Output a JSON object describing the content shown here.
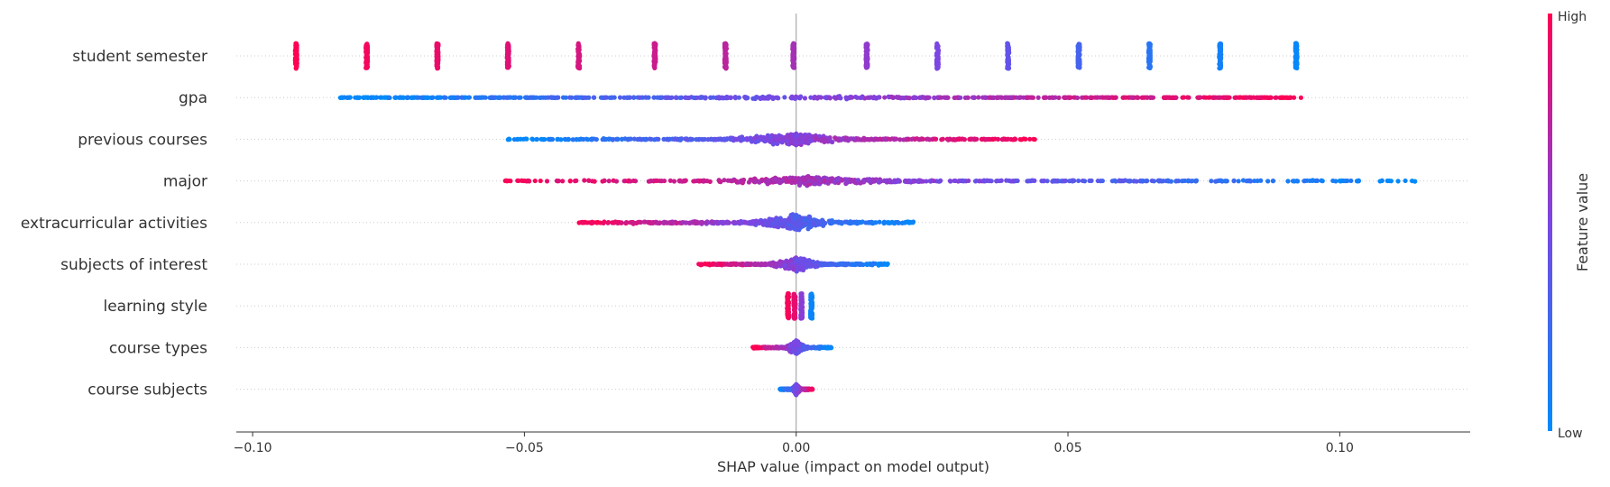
{
  "chart_data": {
    "type": "scatter",
    "subtype": "shap-beeswarm",
    "title": "",
    "xlabel": "SHAP value (impact on model output)",
    "ylabel": "",
    "xlim": [
      -0.103,
      0.124
    ],
    "x_ticks": [
      -0.1,
      -0.05,
      0.0,
      0.05,
      0.1
    ],
    "x_tick_labels": [
      "−0.10",
      "−0.05",
      "0.00",
      "0.05",
      "0.10"
    ],
    "grid": false,
    "features": [
      {
        "name": "student semester",
        "kind": "discrete",
        "groups": [
          {
            "x": -0.092,
            "v": 1.0
          },
          {
            "x": -0.079,
            "v": 0.96
          },
          {
            "x": -0.066,
            "v": 0.92
          },
          {
            "x": -0.053,
            "v": 0.88
          },
          {
            "x": -0.04,
            "v": 0.84
          },
          {
            "x": -0.026,
            "v": 0.8
          },
          {
            "x": -0.013,
            "v": 0.74
          },
          {
            "x": -0.0005,
            "v": 0.66
          },
          {
            "x": 0.013,
            "v": 0.58
          },
          {
            "x": 0.026,
            "v": 0.5
          },
          {
            "x": 0.039,
            "v": 0.4
          },
          {
            "x": 0.052,
            "v": 0.28
          },
          {
            "x": 0.065,
            "v": 0.16
          },
          {
            "x": 0.078,
            "v": 0.08
          },
          {
            "x": 0.092,
            "v": 0.02
          }
        ]
      },
      {
        "name": "gpa",
        "kind": "spread",
        "min": -0.084,
        "max": 0.093,
        "center": 0.002,
        "color": "increasing",
        "density": "uniform",
        "width": 3
      },
      {
        "name": "previous courses",
        "kind": "spread",
        "min": -0.053,
        "max": 0.044,
        "center": 0.0,
        "color": "increasing",
        "density": "peak",
        "width": 9
      },
      {
        "name": "major",
        "kind": "spread",
        "min": -0.056,
        "max": 0.114,
        "center": 0.002,
        "color": "decreasing",
        "density": "peak",
        "width": 7
      },
      {
        "name": "extracurricular activities",
        "kind": "spread",
        "min": -0.04,
        "max": 0.022,
        "center": 0.0,
        "color": "decreasing",
        "density": "peak",
        "width": 13
      },
      {
        "name": "subjects of interest",
        "kind": "spread",
        "min": -0.018,
        "max": 0.017,
        "center": 0.0,
        "color": "decreasing",
        "density": "peak",
        "width": 11
      },
      {
        "name": "learning style",
        "kind": "discrete",
        "groups": [
          {
            "x": -0.0015,
            "v": 0.97
          },
          {
            "x": -0.0003,
            "v": 0.9
          },
          {
            "x": 0.001,
            "v": 0.55
          },
          {
            "x": 0.0028,
            "v": 0.04
          }
        ]
      },
      {
        "name": "course types",
        "kind": "spread",
        "min": -0.008,
        "max": 0.0065,
        "center": 0.0,
        "color": "decreasing",
        "density": "peak",
        "width": 10
      },
      {
        "name": "course subjects",
        "kind": "spread",
        "min": -0.003,
        "max": 0.003,
        "center": 0.0,
        "color": "increasing",
        "density": "peak",
        "width": 8
      }
    ],
    "colorbar": {
      "label": "Feature value",
      "high_label": "High",
      "low_label": "Low",
      "colors": [
        "#008bfb",
        "#7b46e3",
        "#ff0052"
      ]
    },
    "zero_line": true
  }
}
